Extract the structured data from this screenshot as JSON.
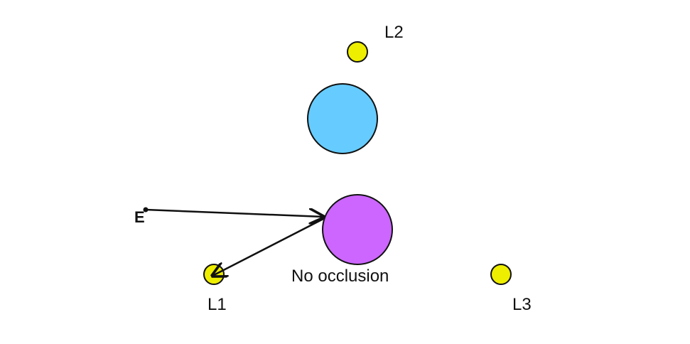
{
  "eye": {
    "label": "E"
  },
  "lights": [
    {
      "id": "L1",
      "label": "L1"
    },
    {
      "id": "L2",
      "label": "L2"
    },
    {
      "id": "L3",
      "label": "L3"
    }
  ],
  "spheres": [
    {
      "name": "blue-sphere",
      "color": "#66ccff"
    },
    {
      "name": "purple-sphere",
      "color": "#cc66ff"
    }
  ],
  "light_color": "#eeee00",
  "caption": "No occlusion"
}
